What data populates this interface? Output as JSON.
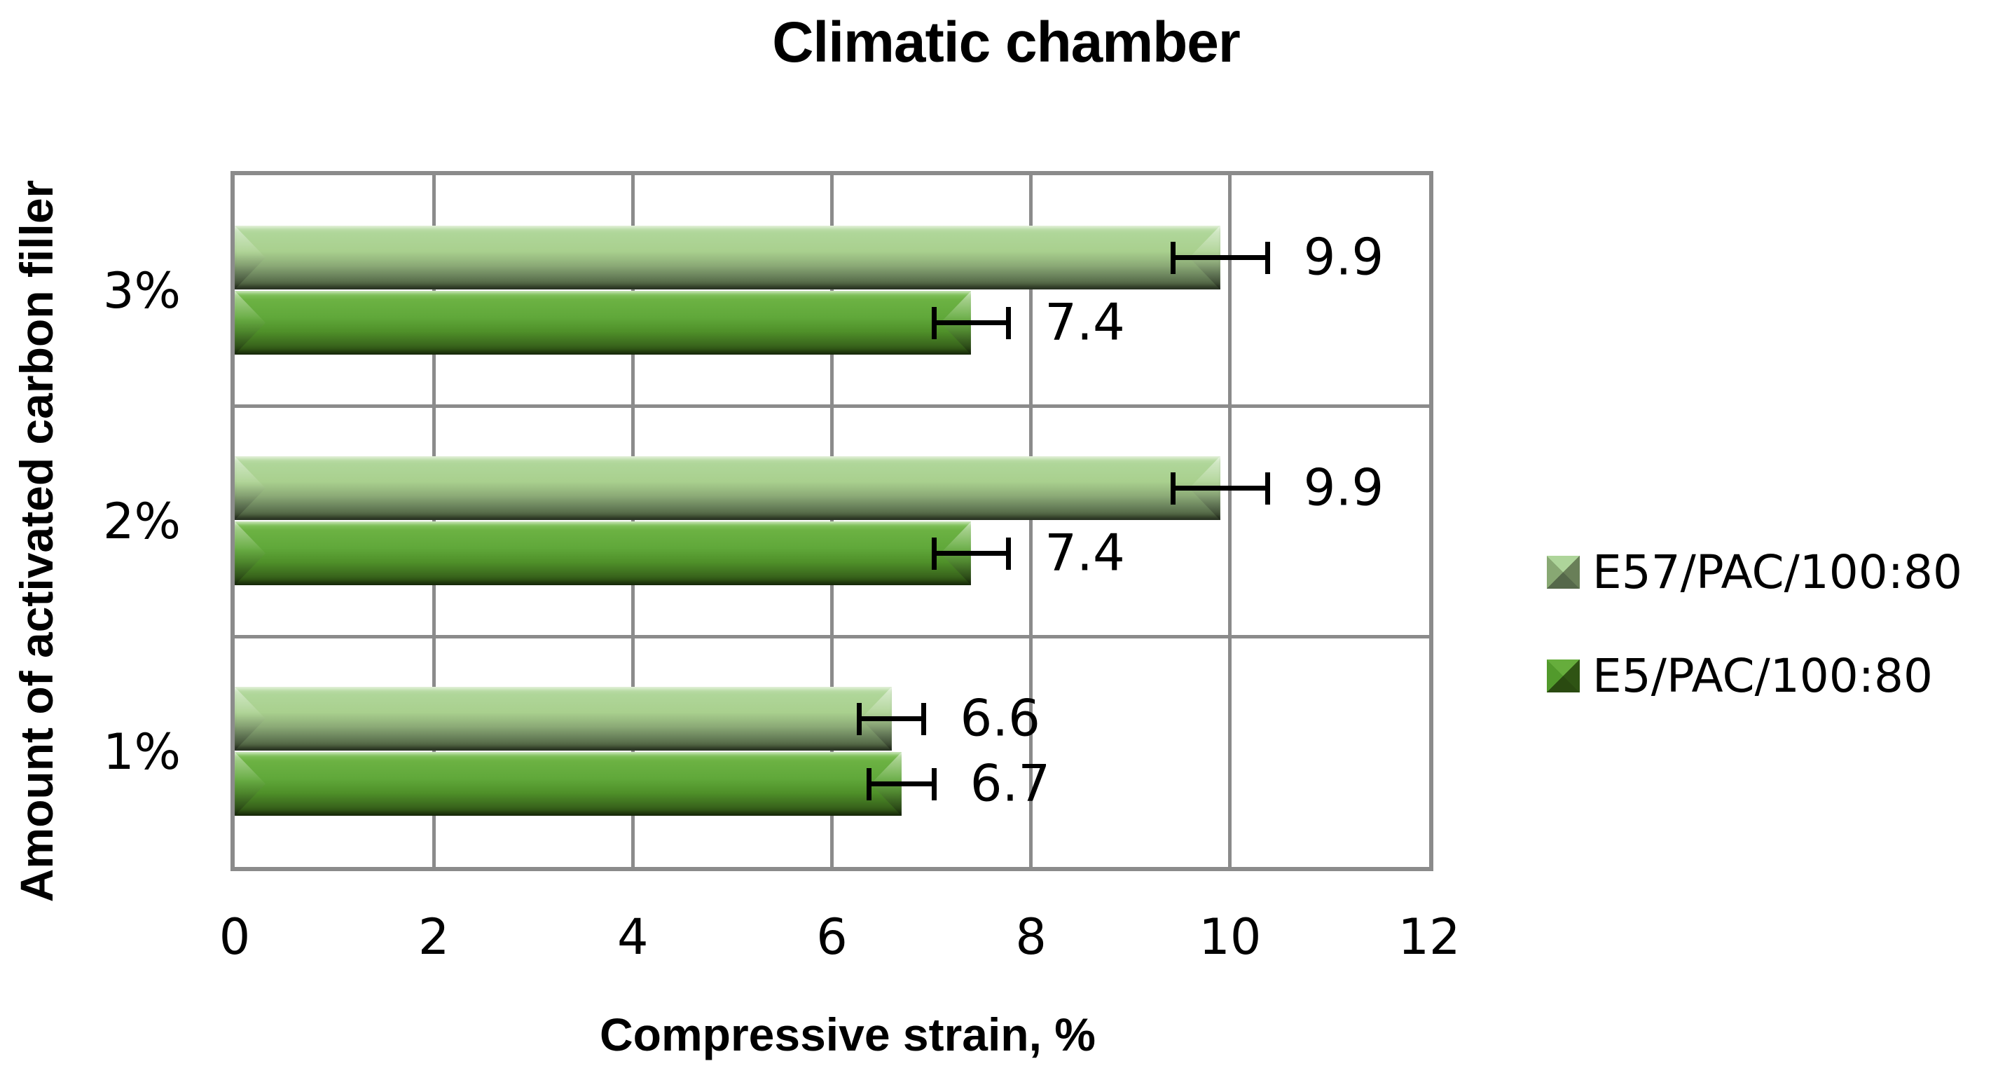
{
  "title": "Climatic chamber",
  "colors": {
    "series_light": "#a9d18e",
    "series_dark": "#538135",
    "gridline": "#8b8b8b",
    "error_bar": "#000000",
    "text": "#000000",
    "background": "#ffffff"
  },
  "chart_data": {
    "type": "bar",
    "orientation": "horizontal",
    "title": "Climatic chamber",
    "xlabel": "Compressive strain, %",
    "ylabel": "Amount of activated carbon filler",
    "xlim": [
      0,
      12
    ],
    "x_ticks": [
      0,
      2,
      4,
      6,
      8,
      10,
      12
    ],
    "grid": true,
    "legend_position": "right",
    "data_labels_shown": true,
    "error_bars_shown": true,
    "categories": [
      "3%",
      "2%",
      "1%"
    ],
    "series": [
      {
        "name": "E57/PAC/100:80",
        "color": "#a9d18e",
        "values": [
          9.9,
          9.9,
          6.6
        ],
        "data_labels": [
          "9.9",
          "9.9",
          "6.6"
        ],
        "error_bars": [
          0.5,
          0.5,
          0.35
        ]
      },
      {
        "name": "E5/PAC/100:80",
        "color": "#538135",
        "values": [
          7.4,
          7.4,
          6.7
        ],
        "data_labels": [
          "7.4",
          "7.4",
          "6.7"
        ],
        "error_bars": [
          0.4,
          0.4,
          0.35
        ]
      }
    ]
  }
}
